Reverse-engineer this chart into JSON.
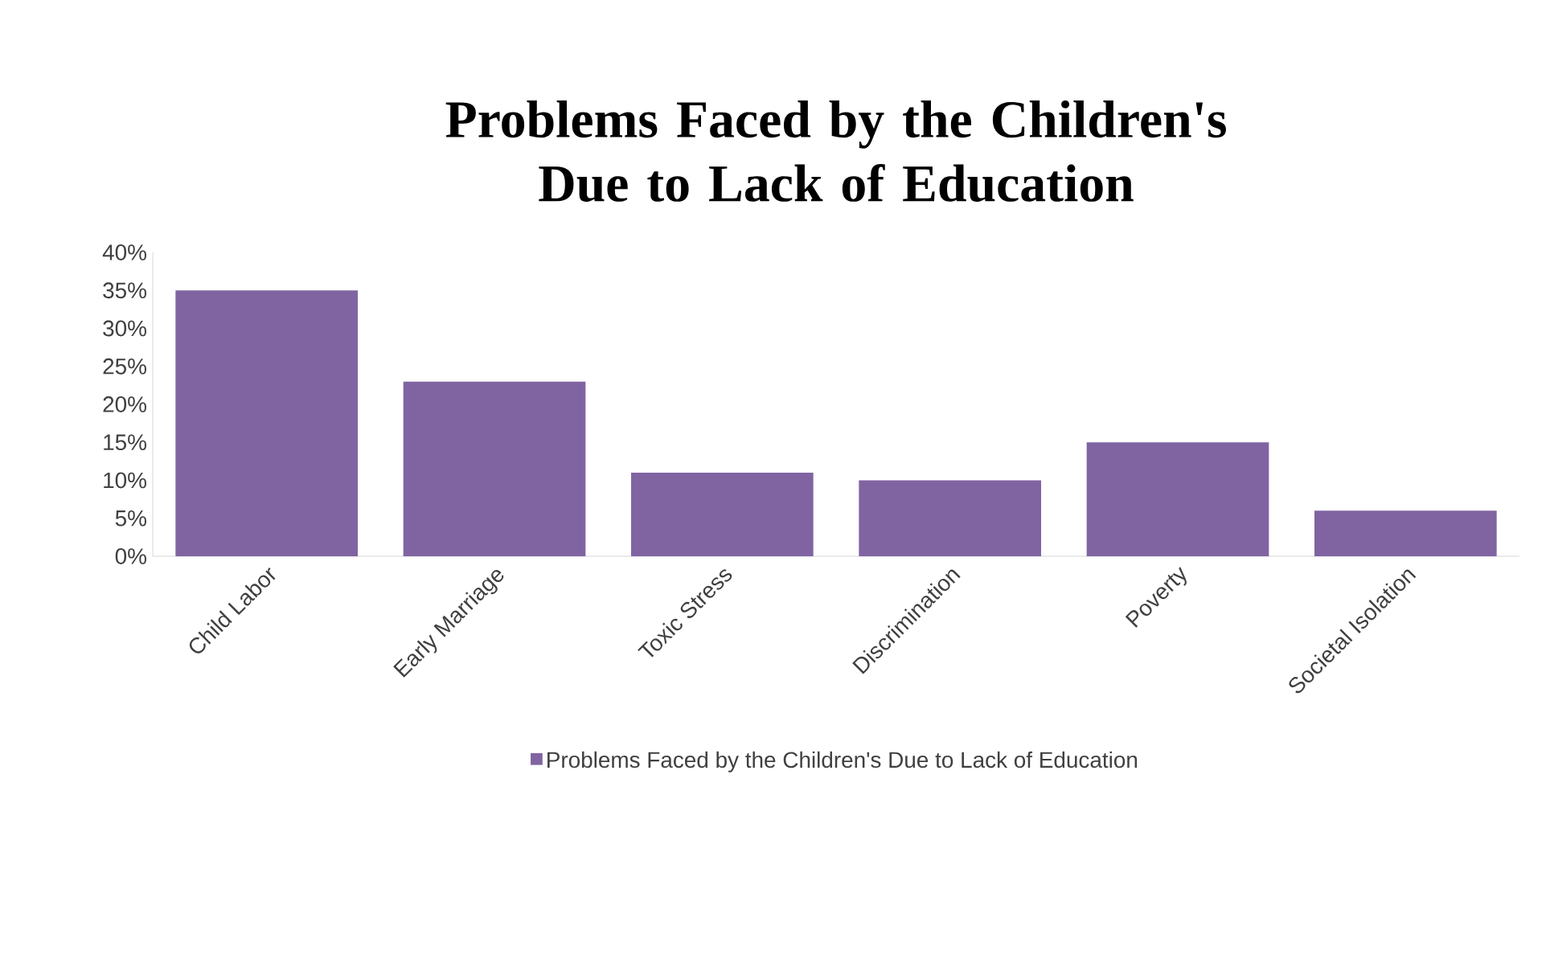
{
  "chart_data": {
    "type": "bar",
    "title": "Problems Faced by the Children's Due to Lack of Education",
    "categories": [
      "Child Labor",
      "Early Marriage",
      "Toxic Stress",
      "Discrimination",
      "Poverty",
      "Societal Isolation"
    ],
    "series": [
      {
        "name": "Problems Faced by the Children's Due to Lack of Education",
        "color": "#8064a2",
        "values": [
          35,
          23,
          11,
          10,
          15,
          6
        ]
      }
    ],
    "ylim": [
      0,
      40
    ],
    "yticks": [
      {
        "value": 0,
        "label": "0%"
      },
      {
        "value": 5,
        "label": "5%"
      },
      {
        "value": 10,
        "label": "10%"
      },
      {
        "value": 15,
        "label": "15%"
      },
      {
        "value": 20,
        "label": "20%"
      },
      {
        "value": 25,
        "label": "25%"
      },
      {
        "value": 30,
        "label": "30%"
      },
      {
        "value": 35,
        "label": "35%"
      },
      {
        "value": 40,
        "label": "40%"
      }
    ],
    "legend": "bottom"
  }
}
